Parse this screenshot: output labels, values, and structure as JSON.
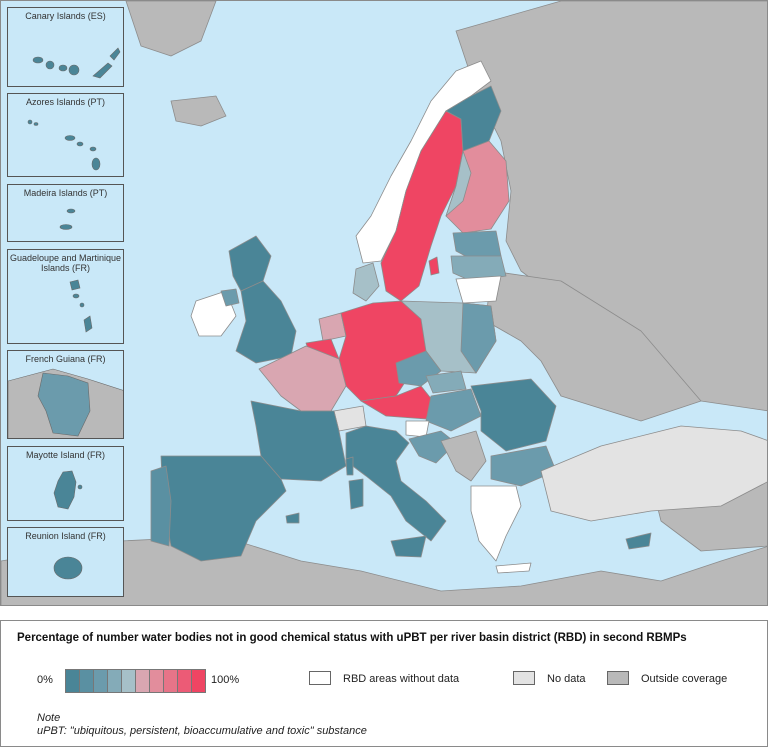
{
  "insets": [
    {
      "title": "Canary Islands (ES)"
    },
    {
      "title": "Azores Islands (PT)"
    },
    {
      "title": "Madeira Islands (PT)"
    },
    {
      "title": "Guadeloupe and Martinique Islands (FR)"
    },
    {
      "title": "French Guiana (FR)"
    },
    {
      "title": "Mayotte Island (FR)"
    },
    {
      "title": "Reunion Island (FR)"
    }
  ],
  "legend": {
    "title": "Percentage of number water bodies not in good chemical status with uPBT per river basin district (RBD) in second RBMPs",
    "scale_min": "0%",
    "scale_max": "100%",
    "scale_colors": [
      "#4a8597",
      "#5a90a2",
      "#6b9bac",
      "#84abb8",
      "#a6c0c8",
      "#d9a6b1",
      "#e28d9c",
      "#e77488",
      "#ec5b76",
      "#ef4563"
    ],
    "no_rbd_data": "RBD areas without data",
    "no_data": "No data",
    "outside_coverage": "Outside coverage",
    "no_rbd_color": "#ffffff",
    "no_data_color": "#e3e3e3",
    "outside_color": "#b9b9b9"
  },
  "note": {
    "title": "Note",
    "text": "uPBT: \"ubiquitous, persistent, bioaccumulative and toxic\" substance"
  },
  "colors": {
    "sea": "#c9e8f8",
    "outside": "#b9b9b9",
    "teal_dark": "#4a8597",
    "teal_mid": "#6b9bac",
    "teal_light": "#a6c0c8",
    "pink_light": "#d9a6b1",
    "red": "#ef4563",
    "nodata": "#e3e3e3"
  }
}
